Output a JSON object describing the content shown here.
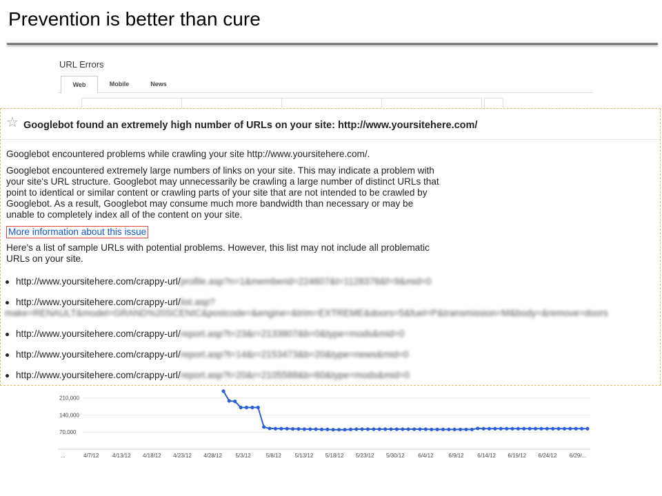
{
  "slide": {
    "title": "Prevention is better than cure"
  },
  "background": {
    "heading": "URL Errors",
    "tabs": [
      {
        "label": "Web",
        "active": true
      },
      {
        "label": "Mobile",
        "active": false
      },
      {
        "label": "News",
        "active": false
      }
    ]
  },
  "message": {
    "icon": "star-icon",
    "title": "Googlebot found an extremely high number of URLs on your site: http://www.yoursitehere.com/",
    "paragraph_1": "Googlebot encountered problems while crawling your site http://www.yoursitehere.com/.",
    "paragraph_2_lines": [
      "Googlebot encountered extremely large numbers of links on your site. This may indicate a problem with",
      "your site's URL structure. Googlebot may unnecessarily be crawling a large number of distinct URLs that",
      "point to identical or similar content or crawling parts of your site that are not intended to be crawled by",
      "Googlebot. As a result, Googlebot may consume much more bandwidth than necessary or may be",
      "unable to completely index all of the content on your site."
    ],
    "more_info_link": "More information about this issue",
    "paragraph_3_lines": [
      "Here's a list of sample URLs with potential problems. However, this list may not include all problematic",
      "URLs on your site."
    ],
    "urls": [
      {
        "visible": "http://www.yoursitehere.com/crappy-url/",
        "blurred": "profile.asp?n=1&memberid=224607&t=1128378&f=9&mid=0",
        "continuation": ""
      },
      {
        "visible": "http://www.yoursitehere.com/crappy-url/",
        "blurred": "list.asp?",
        "continuation": "make=RENAULT&model=GRAND%20SCENIC&postcode=&engine=&trim=EXTREME&doors=5&fuel=P&transmission=M&body=&remove=doors"
      },
      {
        "visible": "http://www.yoursitehere.com/crappy-url/",
        "blurred": "report.asp?t=23&r=2133807&b=0&type=mods&mid=0",
        "continuation": ""
      },
      {
        "visible": "http://www.yoursitehere.com/crappy-url/",
        "blurred": "report.asp?t=14&r=2153473&b=20&type=news&mid=0",
        "continuation": ""
      },
      {
        "visible": "http://www.yoursitehere.com/crappy-url/",
        "blurred": "report.asp?t=20&r=2105588&b=60&type=mods&mid=0",
        "continuation": ""
      }
    ]
  },
  "chart_data": {
    "type": "line",
    "title": "",
    "xlabel": "",
    "ylabel": "",
    "y_ticks": [
      "210,000",
      "140,000",
      "70,000"
    ],
    "x_tick_labels": [
      "...",
      "4/7/12",
      "4/13/12",
      "4/18/12",
      "4/23/12",
      "4/28/12",
      "5/3/12",
      "5/8/12",
      "5/13/12",
      "5/18/12",
      "5/23/12",
      "5/30/12",
      "6/4/12",
      "6/9/12",
      "6/14/12",
      "6/19/12",
      "6/24/12",
      "6/29/..."
    ],
    "color": "#2a5fd6",
    "series": [
      {
        "values": [
          238000,
          198000,
          196000,
          171000,
          171000,
          171000,
          171000,
          91000,
          85000,
          84000,
          84000,
          84000,
          83000,
          83000,
          82000,
          82000,
          82000,
          81000,
          81000,
          80000,
          80000,
          80000,
          81000,
          82000,
          82000,
          82000,
          82000,
          82000,
          82000,
          82000,
          82000,
          82000,
          82000,
          82000,
          82000,
          82000,
          81000,
          81000,
          81000,
          81000,
          81000,
          81000,
          81000,
          81000,
          85000,
          84000,
          84000,
          84000,
          84000,
          84000,
          84000,
          84000,
          84000,
          84000,
          84000,
          84000,
          84000,
          84000,
          84000,
          84000,
          84000,
          84000,
          84000,
          84000
        ]
      }
    ],
    "ylim": [
      0,
      260000
    ]
  }
}
